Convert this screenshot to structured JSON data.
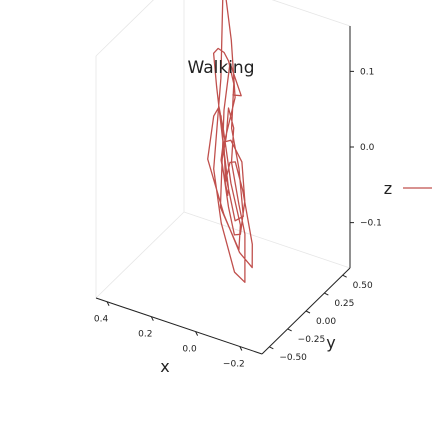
{
  "chart_data": {
    "type": "line3d",
    "title": "Walking",
    "xlabel": "x",
    "ylabel": "y",
    "zlabel": "z",
    "x_ticks": [
      "−0.2",
      "0.0",
      "0.2",
      "0.4"
    ],
    "y_ticks": [
      "−0.50",
      "−0.25",
      "0.00",
      "0.25",
      "0.50"
    ],
    "z_ticks": [
      "−0.1",
      "0.0",
      "0.1"
    ],
    "xlim": [
      -0.3,
      0.45
    ],
    "ylim": [
      -0.6,
      0.6
    ],
    "zlim": [
      -0.16,
      0.16
    ],
    "grid": true,
    "color": "#c0504d",
    "legend_entries": [
      {
        "label": "",
        "color": "#c0504d"
      }
    ],
    "series": [
      {
        "points": [
          [
            -0.09,
            -0.37,
            0.14
          ],
          [
            -0.07,
            -0.19,
            0.12
          ],
          [
            0.08,
            0.11,
            0.12
          ],
          [
            0.12,
            0.15,
            0.05
          ],
          [
            0.11,
            0.07,
            -0.07
          ],
          [
            -0.02,
            -0.07,
            -0.1
          ],
          [
            -0.07,
            -0.2,
            -0.05
          ],
          [
            -0.05,
            -0.27,
            0.01
          ],
          [
            0.0,
            -0.22,
            0.07
          ],
          [
            0.07,
            -0.07,
            0.08
          ],
          [
            0.16,
            0.13,
            0.04
          ],
          [
            0.24,
            0.29,
            -0.04
          ],
          [
            0.15,
            0.24,
            -0.1
          ],
          [
            0.02,
            0.06,
            -0.12
          ],
          [
            -0.1,
            -0.13,
            -0.11
          ],
          [
            -0.15,
            -0.28,
            -0.06
          ],
          [
            -0.14,
            -0.38,
            0.02
          ],
          [
            -0.07,
            -0.27,
            0.04
          ],
          [
            0.05,
            0.02,
            0.0
          ],
          [
            0.13,
            0.2,
            -0.05
          ],
          [
            0.16,
            0.27,
            -0.01
          ],
          [
            0.1,
            0.24,
            0.06
          ],
          [
            0.18,
            0.43,
            0.11
          ],
          [
            0.33,
            0.78,
            0.14
          ],
          [
            0.36,
            0.86,
            0.12
          ],
          [
            0.24,
            0.47,
            0.05
          ],
          [
            0.16,
            0.13,
            -0.03
          ],
          [
            0.08,
            -0.01,
            -0.08
          ],
          [
            -0.03,
            -0.16,
            -0.12
          ],
          [
            -0.1,
            -0.23,
            -0.12
          ],
          [
            -0.09,
            -0.2,
            -0.06
          ],
          [
            -0.02,
            -0.07,
            -0.04
          ],
          [
            0.02,
            -0.05,
            0.01
          ],
          [
            0.0,
            -0.08,
            0.06
          ],
          [
            0.06,
            0.03,
            0.07
          ],
          [
            0.1,
            0.12,
            0.02
          ],
          [
            0.16,
            0.24,
            -0.03
          ],
          [
            0.11,
            0.18,
            -0.08
          ],
          [
            0.02,
            -0.01,
            -0.09
          ],
          [
            -0.05,
            -0.14,
            -0.07
          ],
          [
            -0.08,
            -0.17,
            -0.02
          ],
          [
            -0.04,
            -0.09,
            0.02
          ],
          [
            0.02,
            -0.06,
            0.04
          ],
          [
            0.09,
            0.05,
            0.02
          ],
          [
            0.14,
            0.17,
            -0.02
          ],
          [
            0.1,
            0.14,
            -0.06
          ],
          [
            0.07,
            0.06,
            -0.04
          ],
          [
            0.13,
            0.16,
            0.01
          ],
          [
            0.2,
            0.29,
            0.06
          ],
          [
            0.22,
            0.31,
            0.1
          ],
          [
            0.17,
            0.22,
            0.12
          ],
          [
            0.11,
            0.12,
            0.13
          ],
          [
            0.04,
            -0.03,
            0.14
          ],
          [
            -0.03,
            -0.17,
            0.13
          ],
          [
            -0.02,
            -0.17,
            0.07
          ],
          [
            -0.08,
            -0.25,
            0.03
          ],
          [
            -0.05,
            -0.1,
            -0.05
          ],
          [
            0.04,
            0.06,
            -0.08
          ],
          [
            0.14,
            0.24,
            -0.05
          ],
          [
            0.19,
            0.32,
            0.02
          ]
        ]
      }
    ]
  }
}
